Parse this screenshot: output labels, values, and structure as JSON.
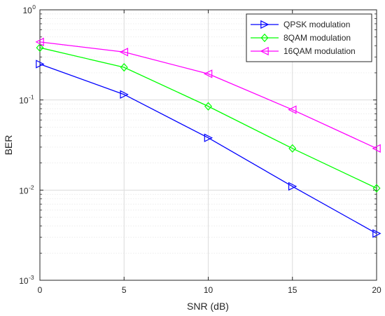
{
  "chart_data": {
    "type": "line",
    "xlabel": "SNR (dB)",
    "ylabel": "BER",
    "xlim": [
      0,
      20
    ],
    "ylim": [
      0.001,
      1
    ],
    "yscale": "log",
    "grid": true,
    "legend_position": "top-right",
    "x_ticks": [
      {
        "value": 0,
        "label": "0"
      },
      {
        "value": 5,
        "label": "5"
      },
      {
        "value": 10,
        "label": "10"
      },
      {
        "value": 15,
        "label": "15"
      },
      {
        "value": 20,
        "label": "20"
      }
    ],
    "y_ticks": [
      {
        "value": 1,
        "base": "10",
        "exp": "0"
      },
      {
        "value": 0.1,
        "base": "10",
        "exp": "-1"
      },
      {
        "value": 0.01,
        "base": "10",
        "exp": "-2"
      },
      {
        "value": 0.001,
        "base": "10",
        "exp": "-3"
      }
    ],
    "x": [
      0,
      5,
      10,
      15,
      20
    ],
    "series": [
      {
        "name": "QPSK modulation",
        "color": "#0000ff",
        "marker": "triangle-right",
        "values": [
          0.25,
          0.115,
          0.038,
          0.011,
          0.0033
        ]
      },
      {
        "name": "8QAM modulation",
        "color": "#00ff00",
        "marker": "diamond",
        "values": [
          0.38,
          0.23,
          0.085,
          0.029,
          0.0105
        ]
      },
      {
        "name": "16QAM modulation",
        "color": "#ff00ff",
        "marker": "triangle-left",
        "values": [
          0.44,
          0.34,
          0.195,
          0.078,
          0.029
        ]
      }
    ]
  }
}
